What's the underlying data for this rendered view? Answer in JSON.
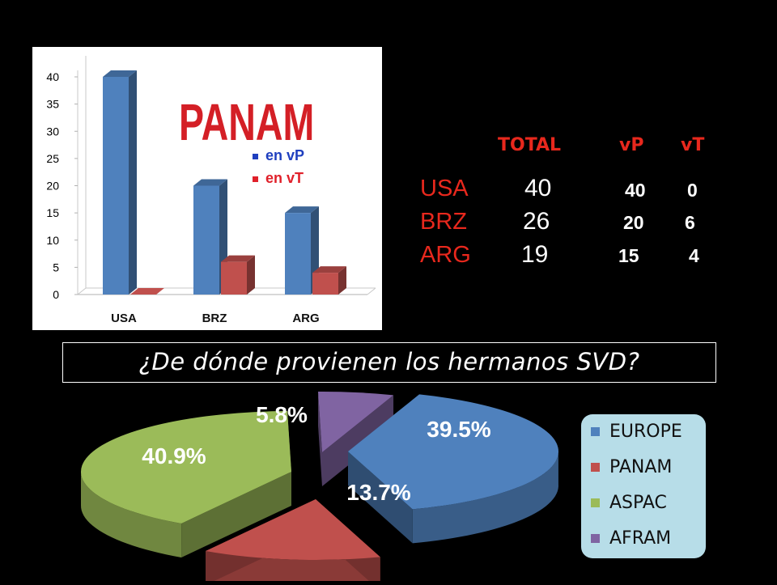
{
  "chart_data": [
    {
      "type": "bar",
      "title": "PANAM",
      "categories": [
        "USA",
        "BRZ",
        "ARG"
      ],
      "ylim": [
        0,
        40
      ],
      "yticks": [
        0,
        5,
        10,
        15,
        20,
        25,
        30,
        35,
        40
      ],
      "grid": false,
      "legend_position": "center",
      "series": [
        {
          "name": "en vP",
          "values": [
            40,
            20,
            15
          ],
          "color": "#4f81bd"
        },
        {
          "name": "en vT",
          "values": [
            0,
            6,
            4
          ],
          "color": "#c0504d"
        }
      ]
    },
    {
      "type": "pie",
      "title": "¿De dónde provienen los hermanos SVD?",
      "categories": [
        "EUROPE",
        "PANAM",
        "ASPAC",
        "AFRAM"
      ],
      "values": [
        39.5,
        13.7,
        40.9,
        5.8
      ],
      "labels": [
        "39.5%",
        "13.7%",
        "40.9%",
        "5.8%"
      ],
      "colors": [
        "#4f81bd",
        "#c0504d",
        "#9bbb59",
        "#8064a2"
      ],
      "legend_position": "right"
    }
  ],
  "stats": {
    "headers": {
      "total": "TOTAL",
      "vp": "vP",
      "vt": "vT"
    },
    "rows": [
      {
        "country": "USA",
        "total": "40",
        "vp": "40",
        "vt": "0"
      },
      {
        "country": "BRZ",
        "total": "26",
        "vp": "20",
        "vt": "6"
      },
      {
        "country": "ARG",
        "total": "19",
        "vp": "15",
        "vt": "4"
      }
    ]
  },
  "question": "¿De dónde provienen los hermanos SVD?",
  "colors": {
    "background": "#000000",
    "accent_red": "#e8281d",
    "panam_title": "#d41f26",
    "legend_bg": "#b7dde8",
    "legend_vp": "#1f3fbf",
    "legend_vt": "#e0202a"
  }
}
